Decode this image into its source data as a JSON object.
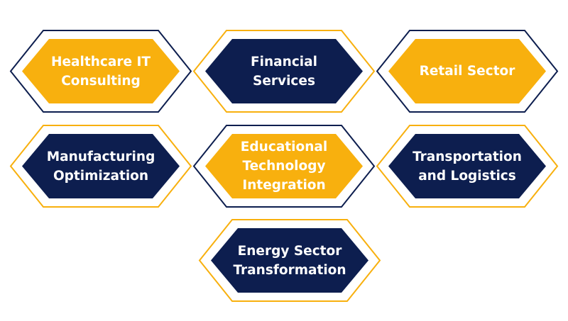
{
  "colors": {
    "navy": "#0d1e4f",
    "gold": "#f8b00e",
    "white": "#ffffff"
  },
  "tiles": [
    {
      "label": "Healthcare IT\nConsulting",
      "fill": "gold",
      "outline": "navy"
    },
    {
      "label": "Financial Services",
      "fill": "navy",
      "outline": "gold"
    },
    {
      "label": "Retail Sector",
      "fill": "gold",
      "outline": "navy"
    },
    {
      "label": "Manufacturing\nOptimization",
      "fill": "navy",
      "outline": "gold"
    },
    {
      "label": "Educational\nTechnology\nIntegration",
      "fill": "gold",
      "outline": "navy"
    },
    {
      "label": "Transportation\nand Logistics",
      "fill": "navy",
      "outline": "gold"
    },
    {
      "label": "Energy Sector\nTransformation",
      "fill": "navy",
      "outline": "gold"
    }
  ]
}
